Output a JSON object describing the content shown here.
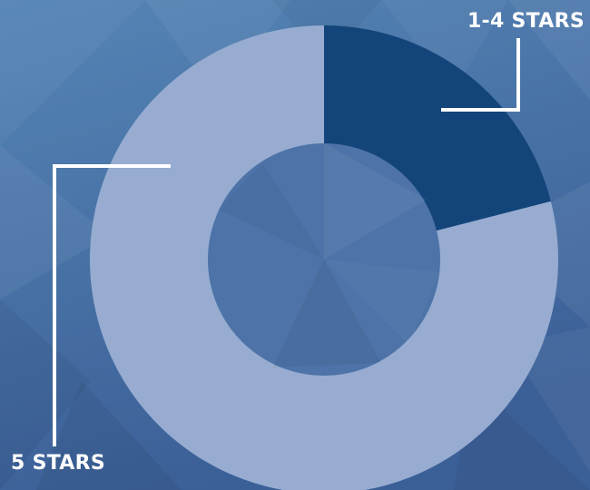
{
  "chart_data": {
    "type": "pie",
    "style": "donut",
    "categories": [
      "1-4 STARS",
      "5 STARS"
    ],
    "values": [
      21,
      79
    ],
    "colors": [
      "#14457a",
      "#97acd0"
    ],
    "title": "",
    "legend": "none"
  },
  "background": {
    "top_color": "#5585b5",
    "bottom_color": "#3b5f97"
  }
}
